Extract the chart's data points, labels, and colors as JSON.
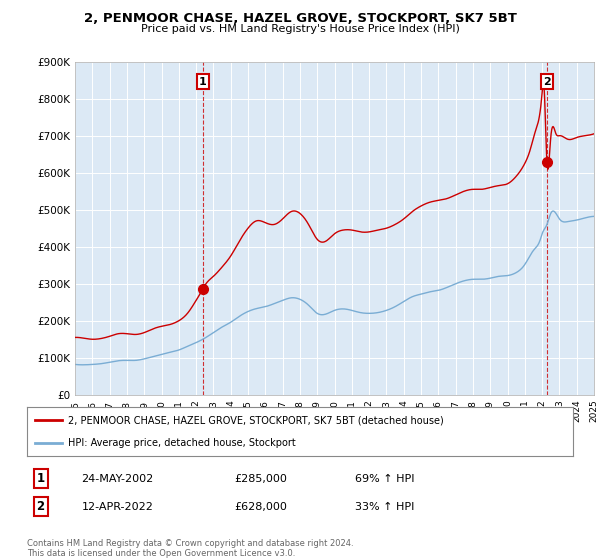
{
  "title": "2, PENMOOR CHASE, HAZEL GROVE, STOCKPORT, SK7 5BT",
  "subtitle": "Price paid vs. HM Land Registry's House Price Index (HPI)",
  "background_color": "#ffffff",
  "plot_bg_color": "#dce9f5",
  "grid_color": "#ffffff",
  "red_color": "#cc0000",
  "blue_color": "#7aadd4",
  "ylim": [
    0,
    900000
  ],
  "yticks": [
    0,
    100000,
    200000,
    300000,
    400000,
    500000,
    600000,
    700000,
    800000,
    900000
  ],
  "ytick_labels": [
    "£0",
    "£100K",
    "£200K",
    "£300K",
    "£400K",
    "£500K",
    "£600K",
    "£700K",
    "£800K",
    "£900K"
  ],
  "transactions": [
    {
      "date_num": 2002.38,
      "price": 285000,
      "label": "1"
    },
    {
      "date_num": 2022.28,
      "price": 628000,
      "label": "2"
    }
  ],
  "legend_line1": "2, PENMOOR CHASE, HAZEL GROVE, STOCKPORT, SK7 5BT (detached house)",
  "legend_line2": "HPI: Average price, detached house, Stockport",
  "annotation1_date": "24-MAY-2002",
  "annotation1_price": "£285,000",
  "annotation1_hpi": "69% ↑ HPI",
  "annotation2_date": "12-APR-2022",
  "annotation2_price": "£628,000",
  "annotation2_hpi": "33% ↑ HPI",
  "footer": "Contains HM Land Registry data © Crown copyright and database right 2024.\nThis data is licensed under the Open Government Licence v3.0."
}
